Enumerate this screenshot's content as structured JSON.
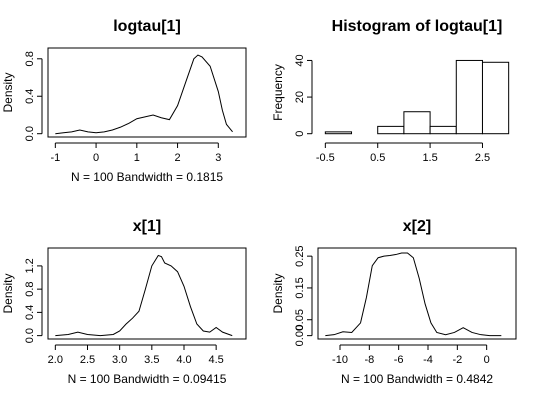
{
  "chart_data": [
    {
      "type": "line",
      "title": "logtau[1]",
      "xlabel": "N = 100   Bandwidth = 0.1815",
      "ylabel": "Density",
      "xlim": [
        -1.0,
        3.5
      ],
      "ylim": [
        0,
        0.88
      ],
      "xticks": [
        -1,
        0,
        1,
        2,
        3
      ],
      "xtick_labels": [
        "-1",
        "0",
        "1",
        "2",
        "3"
      ],
      "yticks": [
        0.0,
        0.4,
        0.8
      ],
      "ytick_labels": [
        "0.0",
        "0.4",
        "0.8"
      ],
      "x": [
        -1.0,
        -0.8,
        -0.6,
        -0.4,
        -0.2,
        0.0,
        0.2,
        0.4,
        0.6,
        0.8,
        1.0,
        1.2,
        1.4,
        1.6,
        1.8,
        2.0,
        2.2,
        2.4,
        2.5,
        2.6,
        2.8,
        3.0,
        3.1,
        3.2,
        3.35
      ],
      "y": [
        0.0,
        0.01,
        0.02,
        0.04,
        0.02,
        0.01,
        0.02,
        0.04,
        0.07,
        0.11,
        0.16,
        0.18,
        0.2,
        0.17,
        0.15,
        0.3,
        0.55,
        0.8,
        0.84,
        0.82,
        0.72,
        0.45,
        0.25,
        0.1,
        0.02
      ]
    },
    {
      "type": "bar",
      "title": "Histogram of logtau[1]",
      "xlabel": "",
      "ylabel": "Frequency",
      "xlim": [
        -0.5,
        3.0
      ],
      "ylim": [
        0,
        45
      ],
      "xticks": [
        -0.5,
        0.5,
        1.5,
        2.5
      ],
      "xtick_labels": [
        "-0.5",
        "0.5",
        "1.5",
        "2.5"
      ],
      "yticks": [
        0,
        20,
        40
      ],
      "ytick_labels": [
        "0",
        "20",
        "40"
      ],
      "bin_edges": [
        -0.5,
        0.0,
        0.5,
        1.0,
        1.5,
        2.0,
        2.5,
        3.0
      ],
      "values": [
        1,
        0,
        4,
        12,
        4,
        40,
        39
      ]
    },
    {
      "type": "line",
      "title": "x[1]",
      "xlabel": "N = 100   Bandwidth = 0.09415",
      "ylabel": "Density",
      "xlim": [
        2.0,
        4.85
      ],
      "ylim": [
        0,
        1.45
      ],
      "xticks": [
        2.0,
        2.5,
        3.0,
        3.5,
        4.0,
        4.5
      ],
      "xtick_labels": [
        "2.0",
        "2.5",
        "3.0",
        "3.5",
        "4.0",
        "4.5"
      ],
      "yticks": [
        0.0,
        0.4,
        0.8,
        1.2
      ],
      "ytick_labels": [
        "0.0",
        "0.4",
        "0.8",
        "1.2"
      ],
      "x": [
        2.0,
        2.2,
        2.35,
        2.5,
        2.7,
        2.9,
        3.0,
        3.1,
        3.2,
        3.3,
        3.4,
        3.5,
        3.6,
        3.65,
        3.7,
        3.8,
        3.9,
        4.0,
        4.1,
        4.2,
        4.3,
        4.4,
        4.5,
        4.6,
        4.75
      ],
      "y": [
        0.0,
        0.02,
        0.06,
        0.02,
        0.0,
        0.02,
        0.08,
        0.2,
        0.3,
        0.42,
        0.8,
        1.2,
        1.38,
        1.36,
        1.25,
        1.2,
        1.1,
        0.85,
        0.5,
        0.2,
        0.08,
        0.06,
        0.14,
        0.06,
        0.0
      ]
    },
    {
      "type": "line",
      "title": "x[2]",
      "xlabel": "N = 100   Bandwidth = 0.4842",
      "ylabel": "Density",
      "xlim": [
        -11.0,
        1.5
      ],
      "ylim": [
        0,
        0.265
      ],
      "xticks": [
        -10,
        -8,
        -6,
        -4,
        -2,
        0
      ],
      "xtick_labels": [
        "-10",
        "-8",
        "-6",
        "-4",
        "-2",
        "0"
      ],
      "yticks": [
        0.0,
        0.05,
        0.15,
        0.25
      ],
      "ytick_labels": [
        "0.00",
        "0.05",
        "0.15",
        "0.25"
      ],
      "x": [
        -11.0,
        -10.4,
        -9.8,
        -9.2,
        -8.6,
        -8.2,
        -7.8,
        -7.4,
        -7.0,
        -6.6,
        -6.2,
        -5.8,
        -5.4,
        -5.0,
        -4.6,
        -4.2,
        -3.8,
        -3.4,
        -2.8,
        -2.2,
        -1.6,
        -1.0,
        -0.4,
        0.2,
        1.0
      ],
      "y": [
        0.0,
        0.003,
        0.012,
        0.01,
        0.04,
        0.12,
        0.22,
        0.245,
        0.25,
        0.252,
        0.255,
        0.26,
        0.26,
        0.245,
        0.18,
        0.1,
        0.04,
        0.01,
        0.003,
        0.01,
        0.025,
        0.01,
        0.003,
        0.0,
        0.0
      ]
    }
  ]
}
